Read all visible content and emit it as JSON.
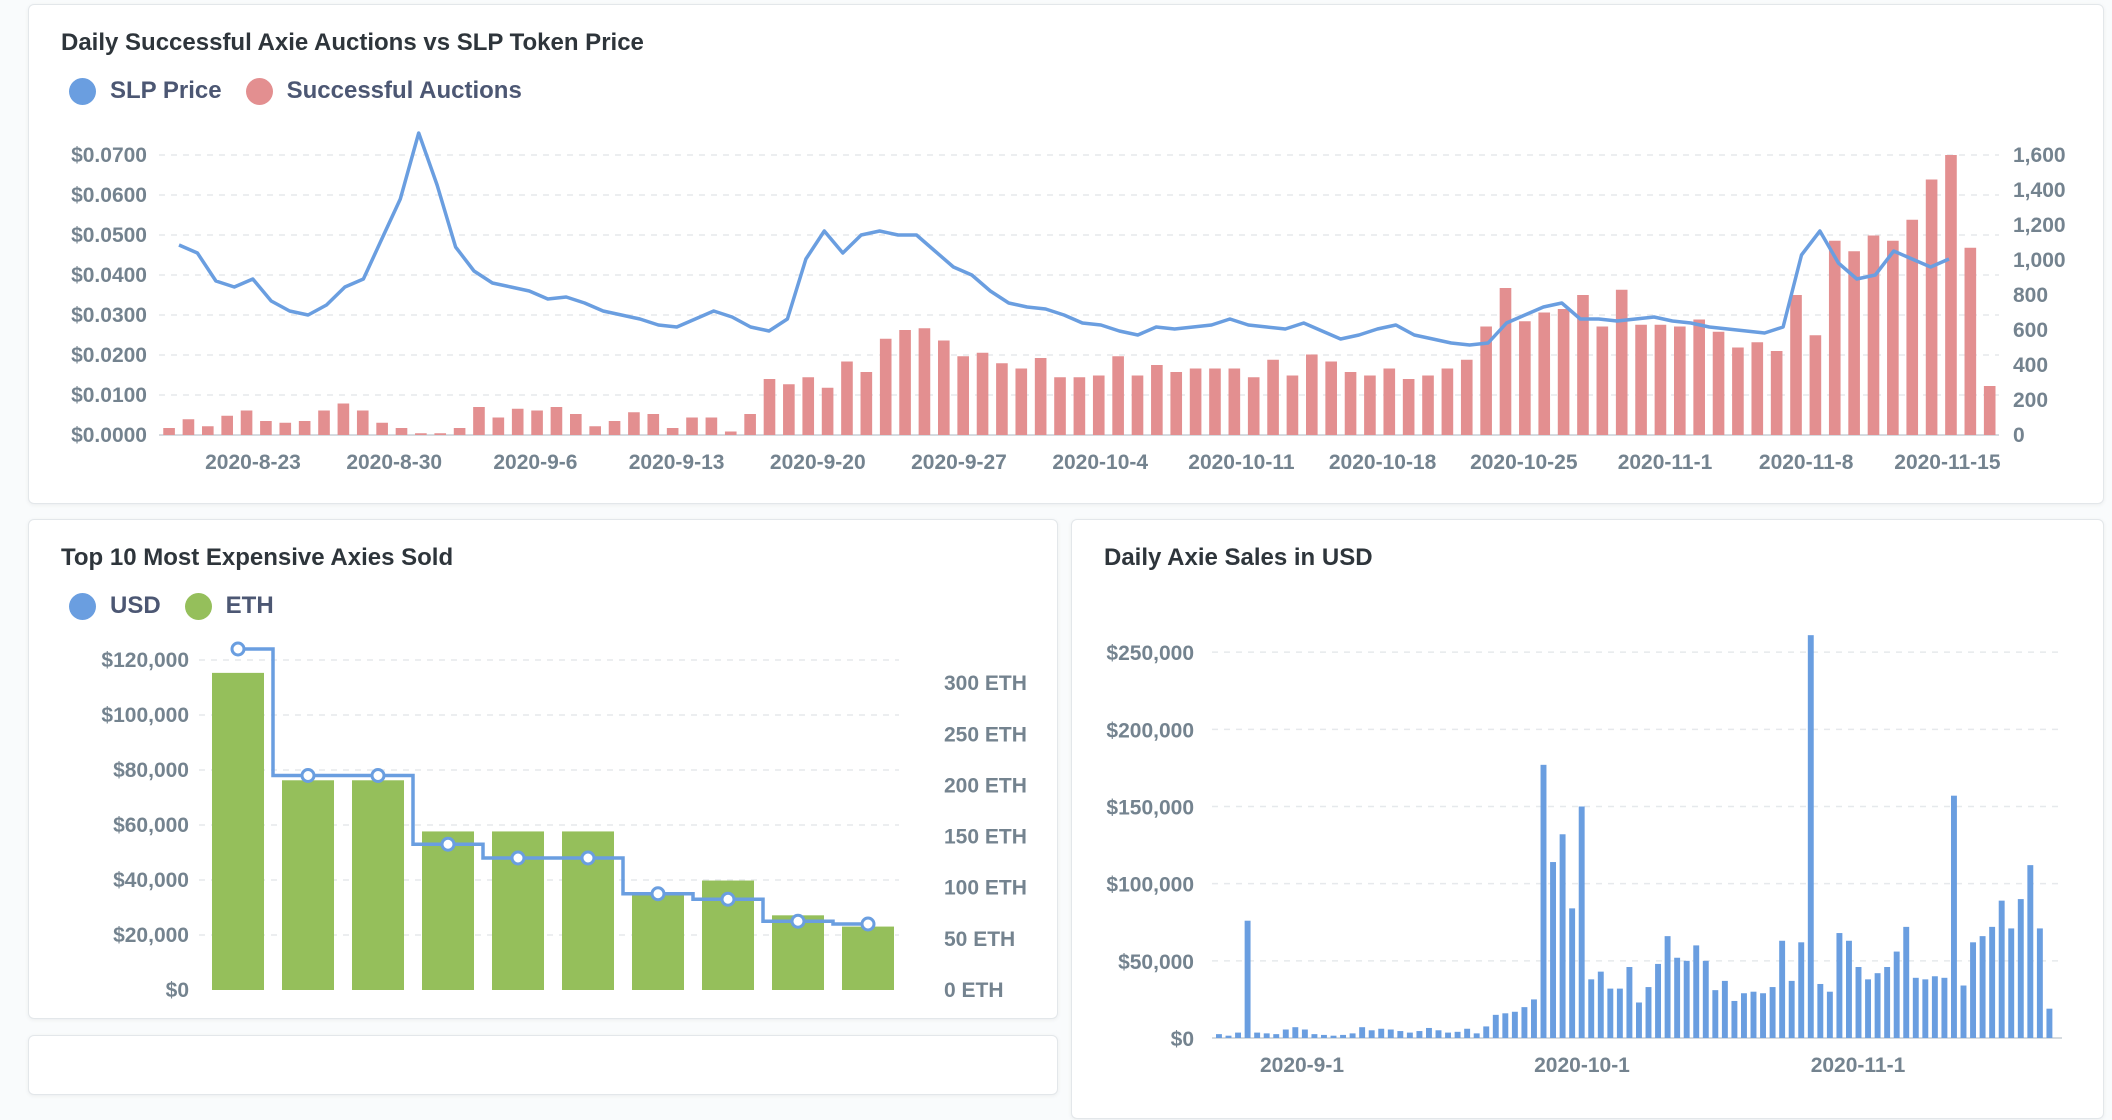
{
  "colors": {
    "blue": "#6a9ee0",
    "pink": "#e38f90",
    "green": "#95bf5b"
  },
  "card1": {
    "title": "Daily Successful Axie Auctions vs SLP Token Price",
    "legend": [
      {
        "label": "SLP Price",
        "color": "#6a9ee0"
      },
      {
        "label": "Successful Auctions",
        "color": "#e38f90"
      }
    ]
  },
  "card2": {
    "title": "Top 10 Most Expensive Axies Sold",
    "legend": [
      {
        "label": "USD",
        "color": "#6a9ee0"
      },
      {
        "label": "ETH",
        "color": "#95bf5b"
      }
    ]
  },
  "card3": {
    "title": "Daily Axie Sales in USD"
  },
  "chart_data": [
    {
      "id": "auctions",
      "type": "bar",
      "title": "Daily Successful Axie Auctions vs SLP Token Price",
      "x_ticks": [
        "2020-8-23",
        "2020-8-30",
        "2020-9-6",
        "2020-9-13",
        "2020-9-20",
        "2020-9-27",
        "2020-10-4",
        "2020-10-11",
        "2020-10-18",
        "2020-10-25",
        "2020-11-1",
        "2020-11-8",
        "2020-11-15"
      ],
      "left_ticks": [
        "$0.0000",
        "$0.0100",
        "$0.0200",
        "$0.0300",
        "$0.0400",
        "$0.0500",
        "$0.0600",
        "$0.0700"
      ],
      "right_ticks": [
        "0",
        "200",
        "400",
        "600",
        "800",
        "1,000",
        "1,200",
        "1,400",
        "1,600"
      ],
      "left_ylim": [
        0,
        0.07
      ],
      "right_ylim": [
        0,
        1600
      ],
      "series": [
        {
          "name": "Successful Auctions",
          "axis": "right",
          "kind": "bar",
          "values": [
            40,
            90,
            50,
            110,
            140,
            80,
            70,
            80,
            140,
            180,
            140,
            70,
            40,
            10,
            10,
            40,
            160,
            100,
            150,
            140,
            160,
            120,
            50,
            80,
            130,
            120,
            40,
            100,
            100,
            20,
            120,
            320,
            290,
            330,
            270,
            420,
            360,
            550,
            600,
            610,
            540,
            450,
            470,
            410,
            380,
            440,
            330,
            330,
            340,
            450,
            340,
            400,
            360,
            380,
            380,
            380,
            330,
            430,
            340,
            460,
            420,
            360,
            340,
            380,
            320,
            340,
            380,
            430,
            620,
            840,
            650,
            700,
            720,
            800,
            620,
            830,
            630,
            630,
            620,
            660,
            590,
            500,
            530,
            480,
            800,
            570,
            1110,
            1050,
            1140,
            1110,
            1230,
            1460,
            1600,
            1070,
            280
          ]
        },
        {
          "name": "SLP Price",
          "axis": "left",
          "kind": "line",
          "values": [
            0.0475,
            0.0455,
            0.0385,
            0.037,
            0.039,
            0.0335,
            0.031,
            0.03,
            0.0325,
            0.037,
            0.039,
            0.049,
            0.059,
            0.0755,
            0.0625,
            0.047,
            0.041,
            0.038,
            0.037,
            0.036,
            0.034,
            0.0345,
            0.033,
            0.031,
            0.03,
            0.029,
            0.0275,
            0.027,
            0.029,
            0.031,
            0.0295,
            0.027,
            0.026,
            0.029,
            0.044,
            0.051,
            0.0455,
            0.05,
            0.051,
            0.05,
            0.05,
            0.046,
            0.042,
            0.04,
            0.036,
            0.033,
            0.032,
            0.0315,
            0.03,
            0.028,
            0.0275,
            0.026,
            0.025,
            0.027,
            0.0265,
            0.027,
            0.0275,
            0.029,
            0.0275,
            0.027,
            0.0265,
            0.028,
            0.026,
            0.024,
            0.025,
            0.0265,
            0.0275,
            0.025,
            0.024,
            0.023,
            0.0225,
            0.023,
            0.028,
            0.03,
            0.032,
            0.033,
            0.029,
            0.029,
            0.0285,
            0.029,
            0.0295,
            0.0285,
            0.028,
            0.027,
            0.0265,
            0.026,
            0.0255,
            0.027,
            0.045,
            0.051,
            0.043,
            0.039,
            0.04,
            0.046,
            0.044,
            0.042,
            0.044
          ]
        }
      ]
    },
    {
      "id": "top10",
      "type": "bar",
      "title": "Top 10 Most Expensive Axies Sold",
      "left_ticks": [
        "$0",
        "$20,000",
        "$40,000",
        "$60,000",
        "$80,000",
        "$100,000",
        "$120,000"
      ],
      "right_ticks": [
        "0 ETH",
        "50 ETH",
        "100 ETH",
        "150 ETH",
        "200 ETH",
        "250 ETH",
        "300 ETH"
      ],
      "left_ylim": [
        0,
        120000
      ],
      "right_ylim": [
        0,
        300
      ],
      "series": [
        {
          "name": "ETH",
          "axis": "right",
          "kind": "bar",
          "values": [
            310,
            205,
            205,
            155,
            155,
            155,
            93,
            107,
            73,
            62
          ]
        },
        {
          "name": "USD",
          "axis": "left",
          "kind": "step",
          "values": [
            124000,
            78000,
            78000,
            53000,
            48000,
            48000,
            35000,
            33000,
            25000,
            24000
          ]
        }
      ]
    },
    {
      "id": "daily-usd",
      "type": "bar",
      "title": "Daily Axie Sales in USD",
      "left_ticks": [
        "$0",
        "$50,000",
        "$100,000",
        "$150,000",
        "$200,000",
        "$250,000"
      ],
      "x_ticks": [
        "2020-9-1",
        "2020-10-1",
        "2020-11-1"
      ],
      "ylim": [
        0,
        250000
      ],
      "series": [
        {
          "name": "Daily Axie Sales in USD",
          "kind": "bar",
          "values": [
            2500,
            1500,
            3500,
            76000,
            3500,
            3000,
            2500,
            5500,
            7000,
            5500,
            2500,
            2000,
            1500,
            2000,
            3000,
            7000,
            5000,
            6000,
            5500,
            4500,
            3500,
            4500,
            6500,
            5000,
            3500,
            4000,
            6000,
            3000,
            7500,
            15000,
            16000,
            17000,
            20000,
            25000,
            177000,
            114000,
            132000,
            84000,
            150000,
            38000,
            43000,
            32000,
            32000,
            46000,
            23000,
            33000,
            48000,
            66000,
            52000,
            50000,
            60000,
            50000,
            31000,
            37000,
            24000,
            29000,
            30000,
            29000,
            33000,
            63000,
            37000,
            62000,
            261000,
            35000,
            30000,
            68000,
            63000,
            46000,
            38000,
            42000,
            46000,
            56000,
            72000,
            39000,
            38000,
            40000,
            39000,
            157000,
            34000,
            62000,
            66000,
            72000,
            89000,
            71000,
            90000,
            112000,
            71000,
            19000
          ]
        }
      ]
    }
  ]
}
